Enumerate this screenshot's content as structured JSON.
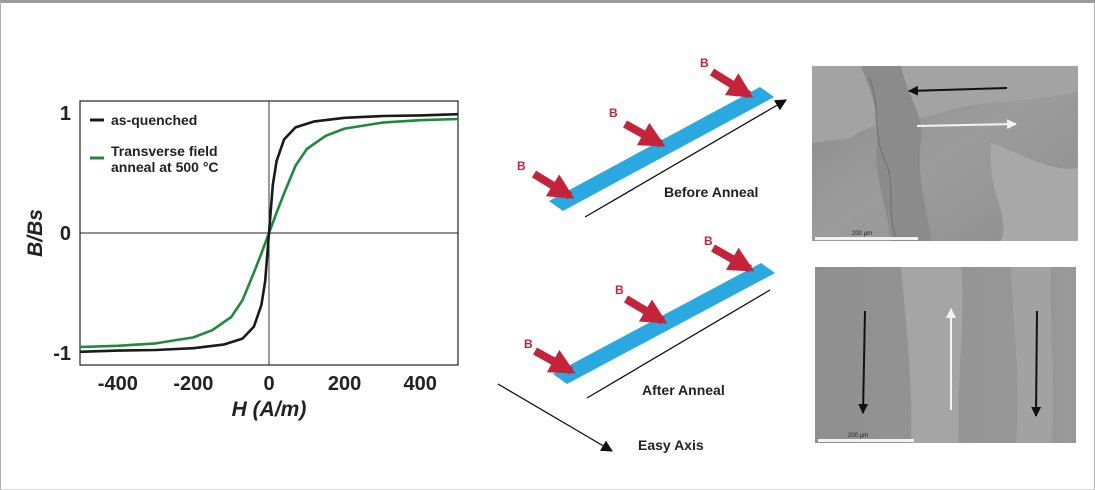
{
  "chart_data": {
    "type": "line",
    "xlabel": "H (A/m)",
    "ylabel": "B/Bs",
    "xlim": [
      -500,
      500
    ],
    "ylim": [
      -1.1,
      1.1
    ],
    "xticks": [
      "-400",
      "-200",
      "0",
      "200",
      "400"
    ],
    "yticks": [
      "1",
      "0",
      "-1"
    ],
    "legend_position": "top-left",
    "series": [
      {
        "name": "as-quenched",
        "color": "#1a1a1a",
        "x": [
          -500,
          -400,
          -300,
          -200,
          -120,
          -70,
          -40,
          -20,
          -10,
          0,
          10,
          20,
          40,
          70,
          120,
          200,
          300,
          400,
          500
        ],
        "y": [
          -0.99,
          -0.98,
          -0.975,
          -0.96,
          -0.93,
          -0.88,
          -0.78,
          -0.6,
          -0.4,
          0.0,
          0.4,
          0.6,
          0.78,
          0.88,
          0.93,
          0.96,
          0.975,
          0.98,
          0.99
        ]
      },
      {
        "name": "Transverse field\nanneal at 500 °C",
        "color": "#1f8a3b",
        "x": [
          -500,
          -400,
          -300,
          -200,
          -150,
          -100,
          -70,
          -40,
          -20,
          0,
          20,
          40,
          70,
          100,
          150,
          200,
          300,
          400,
          500
        ],
        "y": [
          -0.95,
          -0.94,
          -0.92,
          -0.87,
          -0.81,
          -0.7,
          -0.56,
          -0.33,
          -0.17,
          0.0,
          0.17,
          0.33,
          0.56,
          0.7,
          0.81,
          0.87,
          0.92,
          0.94,
          0.95
        ]
      }
    ]
  },
  "diagram": {
    "field_label": "B",
    "before_label": "Before Anneal",
    "after_label": "After Anneal",
    "easy_axis_label": "Easy Axis",
    "strip_color": "#2aa8e0",
    "arrow_color": "#c4233a"
  },
  "micrographs": {
    "top_scale": "200 µm",
    "bottom_scale": "200 µm"
  }
}
